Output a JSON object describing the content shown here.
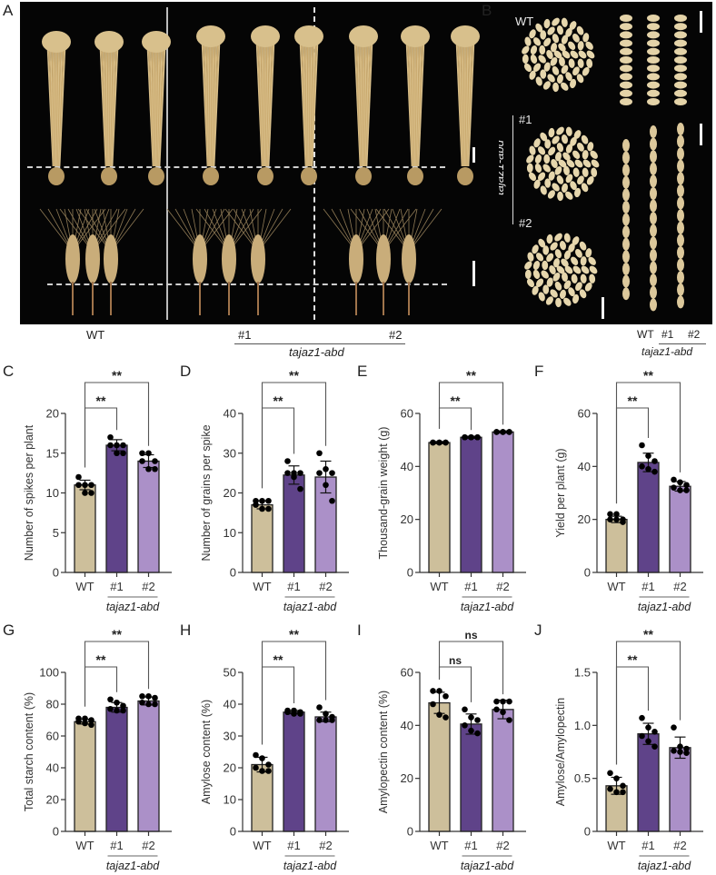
{
  "figure": {
    "panel_a": {
      "letter": "A",
      "labels": {
        "wt": "WT",
        "l1": "#1",
        "l2": "#2",
        "group": "tajaz1-abd"
      }
    },
    "panel_b": {
      "letter": "B",
      "labels": {
        "wt_top": "WT",
        "l1": "#1",
        "l2": "#2",
        "side_group": "tajaz1-abd",
        "bottom_wt": "WT",
        "bottom_l1": "#1",
        "bottom_l2": "#2",
        "bottom_group": "tajaz1-abd"
      }
    }
  },
  "colors": {
    "wt": "#cdbf9b",
    "line1": "#5f4389",
    "line2": "#ab90c8",
    "axis": "#333333",
    "dot": "#000000"
  },
  "chart_data": [
    {
      "id": "C",
      "type": "bar",
      "title": "",
      "ylabel": "Number of spikes per plant",
      "categories": [
        "WT",
        "#1",
        "#2"
      ],
      "group_label": "tajaz1-abd",
      "values": [
        11,
        16,
        14
      ],
      "errors": [
        0.6,
        0.7,
        0.8
      ],
      "points": [
        [
          12,
          11,
          11,
          11,
          10,
          10
        ],
        [
          17,
          16,
          16,
          16,
          15,
          15
        ],
        [
          15,
          15,
          14,
          14,
          13,
          13
        ]
      ],
      "ylim": [
        0,
        20
      ],
      "yticks": [
        0,
        5,
        10,
        15,
        20
      ],
      "ytick_labels": [
        "0",
        "5",
        "10",
        "15",
        "20"
      ],
      "significance": [
        {
          "pair": [
            "WT",
            "#1"
          ],
          "label": "**"
        },
        {
          "pair": [
            "WT",
            "#2"
          ],
          "label": "**"
        }
      ]
    },
    {
      "id": "D",
      "type": "bar",
      "title": "",
      "ylabel": "Number of grains per spike",
      "categories": [
        "WT",
        "#1",
        "#2"
      ],
      "group_label": "tajaz1-abd",
      "values": [
        17,
        24.5,
        24
      ],
      "errors": [
        1.0,
        2.3,
        4.0
      ],
      "points": [
        [
          18,
          18,
          18,
          17,
          16,
          16
        ],
        [
          28,
          25,
          25,
          25,
          24,
          21
        ],
        [
          30,
          26,
          25,
          25,
          22,
          18
        ]
      ],
      "ylim": [
        0,
        40
      ],
      "yticks": [
        0,
        10,
        20,
        30,
        40
      ],
      "ytick_labels": [
        "0",
        "10",
        "20",
        "30",
        "40"
      ],
      "significance": [
        {
          "pair": [
            "WT",
            "#1"
          ],
          "label": "**"
        },
        {
          "pair": [
            "WT",
            "#2"
          ],
          "label": "**"
        }
      ]
    },
    {
      "id": "E",
      "type": "bar",
      "title": "",
      "ylabel": "Thousand-grain weight (g)",
      "categories": [
        "WT",
        "#1",
        "#2"
      ],
      "group_label": "tajaz1-abd",
      "values": [
        49,
        51,
        53
      ],
      "errors": [
        0.4,
        0.4,
        0.4
      ],
      "points": [
        [
          49,
          49,
          49,
          49,
          49,
          49
        ],
        [
          51,
          51,
          51,
          51,
          51,
          51
        ],
        [
          53,
          53,
          53,
          53,
          53,
          53
        ]
      ],
      "ylim": [
        0,
        60
      ],
      "yticks": [
        0,
        20,
        40,
        60
      ],
      "ytick_labels": [
        "0",
        "20",
        "40",
        "60"
      ],
      "significance": [
        {
          "pair": [
            "WT",
            "#1"
          ],
          "label": "**"
        },
        {
          "pair": [
            "WT",
            "#2"
          ],
          "label": "**"
        }
      ]
    },
    {
      "id": "F",
      "type": "bar",
      "title": "",
      "ylabel": "Yield per plant (g)",
      "categories": [
        "WT",
        "#1",
        "#2"
      ],
      "group_label": "tajaz1-abd",
      "values": [
        20,
        41.5,
        32.5
      ],
      "errors": [
        1.2,
        3.5,
        1.8
      ],
      "points": [
        [
          22,
          22,
          20,
          20,
          20,
          19
        ],
        [
          48,
          44,
          42,
          40,
          39,
          38
        ],
        [
          35,
          34,
          33,
          32,
          31,
          31
        ]
      ],
      "ylim": [
        0,
        60
      ],
      "yticks": [
        0,
        20,
        40,
        60
      ],
      "ytick_labels": [
        "0",
        "20",
        "40",
        "60"
      ],
      "significance": [
        {
          "pair": [
            "WT",
            "#1"
          ],
          "label": "**"
        },
        {
          "pair": [
            "WT",
            "#2"
          ],
          "label": "**"
        }
      ]
    },
    {
      "id": "G",
      "type": "bar",
      "title": "",
      "ylabel": "Total starch content (%)",
      "categories": [
        "WT",
        "#1",
        "#2"
      ],
      "group_label": "tajaz1-abd",
      "values": [
        69,
        78,
        82
      ],
      "errors": [
        1.5,
        3.0,
        2.5
      ],
      "points": [
        [
          71,
          71,
          70,
          69,
          68,
          67
        ],
        [
          83,
          81,
          79,
          77,
          76,
          76
        ],
        [
          85,
          85,
          84,
          81,
          80,
          80
        ]
      ],
      "ylim": [
        0,
        100
      ],
      "yticks": [
        0,
        20,
        40,
        60,
        80,
        100
      ],
      "ytick_labels": [
        "0",
        "20",
        "40",
        "60",
        "80",
        "100"
      ],
      "significance": [
        {
          "pair": [
            "WT",
            "#1"
          ],
          "label": "**"
        },
        {
          "pair": [
            "WT",
            "#2"
          ],
          "label": "**"
        }
      ]
    },
    {
      "id": "H",
      "type": "bar",
      "title": "",
      "ylabel": "Amylose content (%)",
      "categories": [
        "WT",
        "#1",
        "#2"
      ],
      "group_label": "tajaz1-abd",
      "values": [
        21,
        37.5,
        36
      ],
      "errors": [
        2.3,
        0.5,
        1.5
      ],
      "points": [
        [
          24,
          23,
          21,
          20,
          19,
          19
        ],
        [
          38,
          38,
          37.5,
          37.5,
          37,
          37
        ],
        [
          39,
          37,
          36,
          35,
          35,
          35
        ]
      ],
      "ylim": [
        0,
        50
      ],
      "yticks": [
        0,
        10,
        20,
        30,
        40,
        50
      ],
      "ytick_labels": [
        "0",
        "10",
        "20",
        "30",
        "40",
        "50"
      ],
      "significance": [
        {
          "pair": [
            "WT",
            "#1"
          ],
          "label": "**"
        },
        {
          "pair": [
            "WT",
            "#2"
          ],
          "label": "**"
        }
      ]
    },
    {
      "id": "I",
      "type": "bar",
      "title": "",
      "ylabel": "Amylopectin content (%)",
      "categories": [
        "WT",
        "#1",
        "#2"
      ],
      "group_label": "tajaz1-abd",
      "values": [
        48.5,
        40.5,
        46
      ],
      "errors": [
        4.0,
        3.8,
        3.5
      ],
      "points": [
        [
          53,
          53,
          51,
          48,
          44,
          43
        ],
        [
          46,
          43,
          42,
          40,
          38,
          37
        ],
        [
          49,
          49,
          49,
          46,
          45,
          42
        ]
      ],
      "ylim": [
        0,
        60
      ],
      "yticks": [
        0,
        20,
        40,
        60
      ],
      "ytick_labels": [
        "0",
        "20",
        "40",
        "60"
      ],
      "significance": [
        {
          "pair": [
            "WT",
            "#1"
          ],
          "label": "ns"
        },
        {
          "pair": [
            "WT",
            "#2"
          ],
          "label": "ns"
        }
      ]
    },
    {
      "id": "J",
      "type": "bar",
      "title": "",
      "ylabel": "Amylose/Amylopectin",
      "categories": [
        "WT",
        "#1",
        "#2"
      ],
      "group_label": "tajaz1-abd",
      "values": [
        0.43,
        0.92,
        0.79
      ],
      "errors": [
        0.08,
        0.1,
        0.1
      ],
      "points": [
        [
          0.55,
          0.5,
          0.43,
          0.4,
          0.37,
          0.37
        ],
        [
          1.07,
          0.98,
          0.94,
          0.9,
          0.85,
          0.8
        ],
        [
          0.98,
          0.8,
          0.78,
          0.76,
          0.75,
          0.74
        ]
      ],
      "ylim": [
        0,
        1.5
      ],
      "yticks": [
        0,
        0.5,
        1.0,
        1.5
      ],
      "ytick_labels": [
        "0",
        "0.5",
        "1.0",
        "1.5"
      ],
      "significance": [
        {
          "pair": [
            "WT",
            "#1"
          ],
          "label": "**"
        },
        {
          "pair": [
            "WT",
            "#2"
          ],
          "label": "**"
        }
      ]
    }
  ]
}
